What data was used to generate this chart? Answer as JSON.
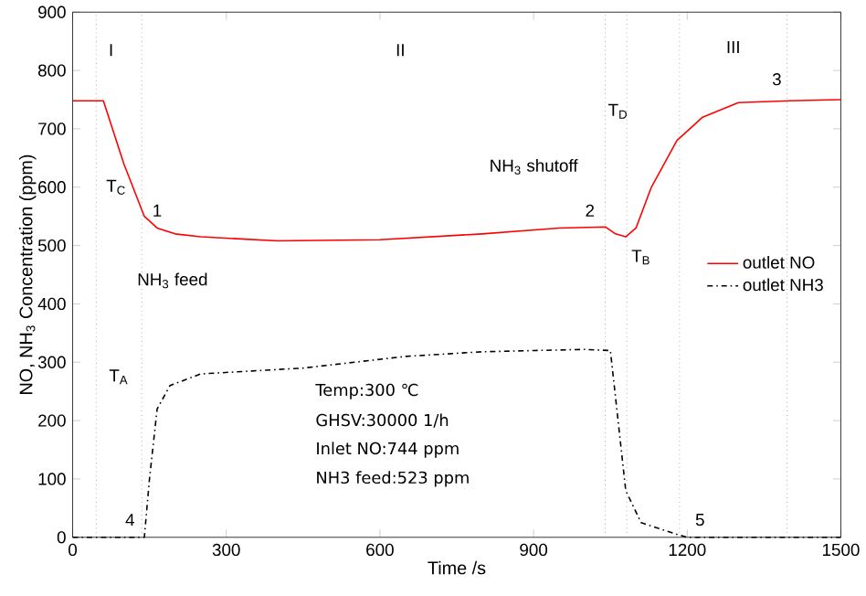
{
  "chart_data": {
    "type": "line",
    "xlabel": "Time /s",
    "ylabel": "NO, NH$_{3}$ Concentration (ppm)",
    "xlim": [
      0,
      1500
    ],
    "ylim": [
      0,
      900
    ],
    "xticks": [
      0,
      300,
      600,
      900,
      1200,
      1500
    ],
    "yticks": [
      0,
      100,
      200,
      300,
      400,
      500,
      600,
      700,
      800,
      900
    ],
    "grid": false,
    "legend": "right",
    "marker": "none",
    "series": [
      {
        "name": "outlet NO",
        "color": "#ff0000",
        "line_style": "solid",
        "x": [
          0,
          60,
          100,
          140,
          165,
          200,
          250,
          400,
          600,
          800,
          950,
          1040,
          1060,
          1080,
          1100,
          1130,
          1180,
          1230,
          1300,
          1400,
          1500
        ],
        "values": [
          748,
          748,
          640,
          550,
          530,
          520,
          515,
          508,
          510,
          520,
          530,
          532,
          520,
          515,
          530,
          600,
          680,
          720,
          745,
          748,
          750
        ]
      },
      {
        "name": "outlet NH3",
        "color": "#000000",
        "line_style": "dashdot",
        "x": [
          0,
          140,
          150,
          165,
          190,
          250,
          350,
          450,
          550,
          650,
          800,
          900,
          1000,
          1050,
          1065,
          1080,
          1110,
          1180,
          1200,
          1500
        ],
        "values": [
          0,
          0,
          100,
          220,
          260,
          280,
          285,
          290,
          300,
          310,
          318,
          320,
          322,
          320,
          200,
          80,
          25,
          5,
          0,
          0
        ]
      }
    ],
    "ref_lines": [
      {
        "axis": "x",
        "value": 46,
        "color": "#808080",
        "line_style": "dotted"
      },
      {
        "axis": "x",
        "value": 135,
        "color": "#808080",
        "line_style": "dotted"
      },
      {
        "axis": "x",
        "value": 1040,
        "color": "#808080",
        "line_style": "dotted"
      },
      {
        "axis": "x",
        "value": 1082,
        "color": "#808080",
        "line_style": "dotted"
      },
      {
        "axis": "x",
        "value": 1185,
        "color": "#808080",
        "line_style": "dotted"
      },
      {
        "axis": "x",
        "value": 1395,
        "color": "#808080",
        "line_style": "dotted"
      }
    ],
    "annotations": [
      "I",
      "II",
      "III",
      "T$_{C}$",
      "1",
      "NH$_{3}$ feed",
      "T$_{A}$",
      "4",
      "2",
      "T$_{D}$",
      "NH$_{3}$ shutoff",
      "3",
      "T$_{B}$",
      "5",
      "Temp:300 ℃",
      "GHSV:30000 1/h",
      "Inlet NO:744 ppm",
      "NH3 feed:523 ppm"
    ]
  }
}
